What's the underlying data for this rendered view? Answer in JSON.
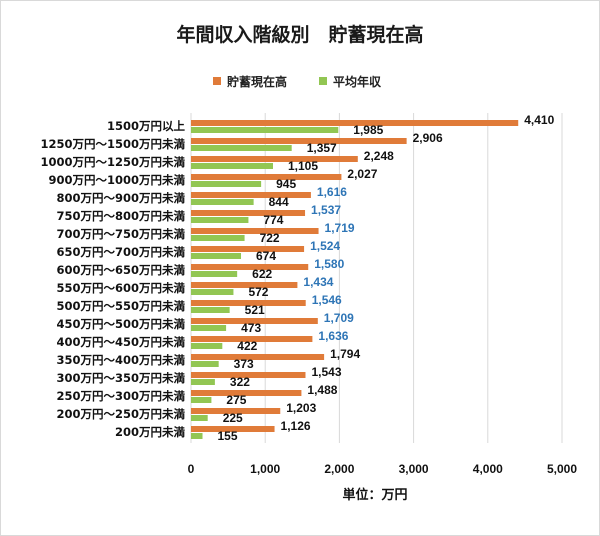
{
  "chart_data": {
    "type": "bar",
    "orientation": "horizontal",
    "title": "年間収入階級別　貯蓄現在高",
    "xlabel": "単位：万円",
    "ylabel": "",
    "xlim": [
      0,
      5000
    ],
    "x_ticks": [
      "0",
      "1,000",
      "2,000",
      "3,000",
      "4,000",
      "5,000"
    ],
    "grid": "vertical",
    "legend_position": "top",
    "categories": [
      "1500万円以上",
      "1250万円～1500万円未満",
      "1000万円～1250万円未満",
      "900万円～1000万円未満",
      "800万円～900万円未満",
      "750万円～800万円未満",
      "700万円～750万円未満",
      "650万円～700万円未満",
      "600万円～650万円未満",
      "550万円～600万円未満",
      "500万円～550万円未満",
      "450万円～500万円未満",
      "400万円～450万円未満",
      "350万円～400万円未満",
      "300万円～350万円未満",
      "250万円～300万円未満",
      "200万円～250万円未満",
      "200万円未満"
    ],
    "series": [
      {
        "name": "貯蓄現在高",
        "color": "#e07b39",
        "values": [
          4410,
          2906,
          2248,
          2027,
          1616,
          1537,
          1719,
          1524,
          1580,
          1434,
          1546,
          1709,
          1636,
          1794,
          1543,
          1488,
          1203,
          1126
        ],
        "labels": [
          "4,410",
          "2,906",
          "2,248",
          "2,027",
          "1,616",
          "1,537",
          "1,719",
          "1,524",
          "1,580",
          "1,434",
          "1,546",
          "1,709",
          "1,636",
          "1,794",
          "1,543",
          "1,488",
          "1,203",
          "1,126"
        ],
        "label_colors": [
          "#111111",
          "#111111",
          "#111111",
          "#111111",
          "#2e75b6",
          "#2e75b6",
          "#2e75b6",
          "#2e75b6",
          "#2e75b6",
          "#2e75b6",
          "#2e75b6",
          "#2e75b6",
          "#2e75b6",
          "#111111",
          "#111111",
          "#111111",
          "#111111",
          "#111111"
        ]
      },
      {
        "name": "平均年収",
        "color": "#92c653",
        "values": [
          1985,
          1357,
          1105,
          945,
          844,
          774,
          722,
          674,
          622,
          572,
          521,
          473,
          422,
          373,
          322,
          275,
          225,
          155
        ],
        "labels": [
          "1,985",
          "1,357",
          "1,105",
          "945",
          "844",
          "774",
          "722",
          "674",
          "622",
          "572",
          "521",
          "473",
          "422",
          "373",
          "322",
          "275",
          "225",
          "155"
        ],
        "label_colors": [
          "#111111",
          "#111111",
          "#111111",
          "#111111",
          "#111111",
          "#111111",
          "#111111",
          "#111111",
          "#111111",
          "#111111",
          "#111111",
          "#111111",
          "#111111",
          "#111111",
          "#111111",
          "#111111",
          "#111111",
          "#111111"
        ]
      }
    ],
    "colors": {
      "grid": "#d9d9d9",
      "text": "#111111",
      "highlight_label": "#2e75b6"
    }
  }
}
